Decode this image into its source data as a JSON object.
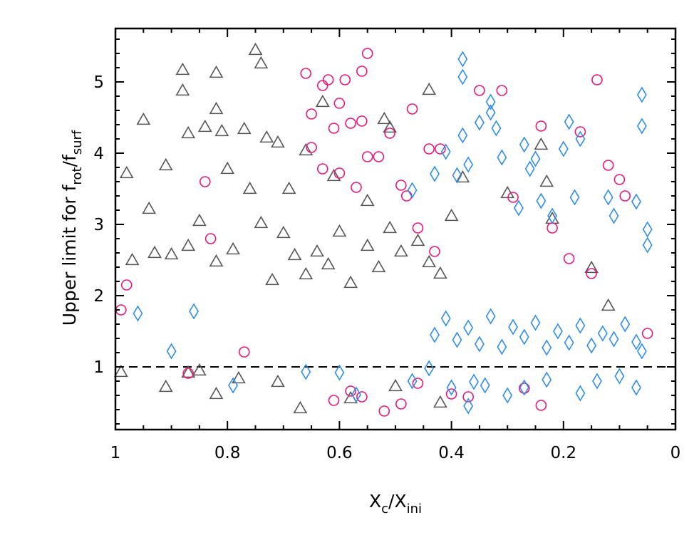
{
  "chart_data": {
    "type": "scatter",
    "title": "",
    "xlabel": {
      "base": "X",
      "sub": "c",
      "sep": "/",
      "base2": "X",
      "sub2": "ini"
    },
    "ylabel": {
      "prefix": "Upper limit for f",
      "sub": "rot",
      "sep": "/f",
      "sub2": "surf"
    },
    "xlim": [
      1,
      0
    ],
    "ylim": [
      0.12,
      5.75
    ],
    "xticks": [
      1,
      0.8,
      0.6,
      0.4,
      0.2,
      0
    ],
    "xtick_labels": [
      "1",
      "0.8",
      "0.6",
      "0.4",
      "0.2",
      "0"
    ],
    "yticks": [
      1,
      2,
      3,
      4,
      5
    ],
    "ytick_labels": [
      "1",
      "2",
      "3",
      "4",
      "5"
    ],
    "reference_line": {
      "y": 1,
      "style": "dashed"
    },
    "grid": false,
    "series": [
      {
        "marker": "triangle",
        "color": "#555555",
        "points": [
          [
            0.98,
            3.72
          ],
          [
            0.95,
            4.47
          ],
          [
            0.94,
            3.22
          ],
          [
            0.91,
            3.83
          ],
          [
            0.88,
            5.17
          ],
          [
            0.88,
            4.88
          ],
          [
            0.87,
            4.28
          ],
          [
            0.84,
            4.37
          ],
          [
            0.82,
            5.13
          ],
          [
            0.82,
            4.62
          ],
          [
            0.81,
            4.31
          ],
          [
            0.8,
            3.78
          ],
          [
            0.77,
            4.34
          ],
          [
            0.75,
            5.45
          ],
          [
            0.74,
            5.26
          ],
          [
            0.73,
            4.22
          ],
          [
            0.71,
            4.15
          ],
          [
            0.69,
            3.5
          ],
          [
            0.66,
            4.04
          ],
          [
            0.63,
            4.72
          ],
          [
            0.61,
            3.68
          ],
          [
            0.55,
            3.33
          ],
          [
            0.52,
            4.48
          ],
          [
            0.51,
            4.36
          ],
          [
            0.44,
            4.89
          ],
          [
            0.4,
            3.12
          ],
          [
            0.38,
            3.66
          ],
          [
            0.3,
            3.44
          ],
          [
            0.24,
            4.12
          ],
          [
            0.23,
            3.6
          ],
          [
            0.22,
            3.08
          ],
          [
            0.15,
            2.39
          ],
          [
            0.12,
            1.86
          ],
          [
            0.99,
            0.93
          ],
          [
            0.91,
            0.72
          ],
          [
            0.87,
            0.92
          ],
          [
            0.85,
            0.95
          ],
          [
            0.82,
            0.62
          ],
          [
            0.78,
            0.84
          ],
          [
            0.71,
            0.79
          ],
          [
            0.67,
            0.42
          ],
          [
            0.58,
            0.56
          ],
          [
            0.5,
            0.73
          ],
          [
            0.42,
            0.5
          ],
          [
            0.97,
            2.5
          ],
          [
            0.93,
            2.6
          ],
          [
            0.9,
            2.58
          ],
          [
            0.87,
            2.7
          ],
          [
            0.85,
            3.05
          ],
          [
            0.82,
            2.48
          ],
          [
            0.79,
            2.65
          ],
          [
            0.76,
            3.5
          ],
          [
            0.74,
            3.02
          ],
          [
            0.72,
            2.22
          ],
          [
            0.7,
            2.88
          ],
          [
            0.68,
            2.57
          ],
          [
            0.66,
            2.3
          ],
          [
            0.64,
            2.62
          ],
          [
            0.62,
            2.44
          ],
          [
            0.6,
            2.9
          ],
          [
            0.58,
            2.18
          ],
          [
            0.55,
            2.7
          ],
          [
            0.53,
            2.4
          ],
          [
            0.51,
            2.95
          ],
          [
            0.49,
            2.62
          ],
          [
            0.46,
            2.77
          ],
          [
            0.44,
            2.47
          ],
          [
            0.42,
            2.31
          ]
        ]
      },
      {
        "marker": "circle",
        "color": "#e8177a",
        "points": [
          [
            0.99,
            1.8
          ],
          [
            0.98,
            2.15
          ],
          [
            0.84,
            3.6
          ],
          [
            0.83,
            2.8
          ],
          [
            0.66,
            5.12
          ],
          [
            0.65,
            4.55
          ],
          [
            0.63,
            4.95
          ],
          [
            0.62,
            5.03
          ],
          [
            0.61,
            4.35
          ],
          [
            0.6,
            4.7
          ],
          [
            0.59,
            5.03
          ],
          [
            0.58,
            4.42
          ],
          [
            0.56,
            5.15
          ],
          [
            0.55,
            5.4
          ],
          [
            0.56,
            4.45
          ],
          [
            0.53,
            3.95
          ],
          [
            0.51,
            4.28
          ],
          [
            0.49,
            3.55
          ],
          [
            0.47,
            4.62
          ],
          [
            0.44,
            4.06
          ],
          [
            0.42,
            4.06
          ],
          [
            0.35,
            4.88
          ],
          [
            0.31,
            4.88
          ],
          [
            0.24,
            4.38
          ],
          [
            0.17,
            4.3
          ],
          [
            0.14,
            5.03
          ],
          [
            0.12,
            3.83
          ],
          [
            0.1,
            3.63
          ],
          [
            0.09,
            3.4
          ],
          [
            0.65,
            4.08
          ],
          [
            0.63,
            3.78
          ],
          [
            0.6,
            3.72
          ],
          [
            0.57,
            3.52
          ],
          [
            0.55,
            3.95
          ],
          [
            0.48,
            3.4
          ],
          [
            0.46,
            2.95
          ],
          [
            0.43,
            2.62
          ],
          [
            0.29,
            3.38
          ],
          [
            0.22,
            2.95
          ],
          [
            0.19,
            2.52
          ],
          [
            0.15,
            2.31
          ],
          [
            0.56,
            0.58
          ],
          [
            0.52,
            0.38
          ],
          [
            0.49,
            0.48
          ],
          [
            0.46,
            0.77
          ],
          [
            0.4,
            0.62
          ],
          [
            0.37,
            0.58
          ],
          [
            0.27,
            0.7
          ],
          [
            0.24,
            0.46
          ],
          [
            0.05,
            1.47
          ],
          [
            0.87,
            0.91
          ],
          [
            0.77,
            1.21
          ],
          [
            0.61,
            0.53
          ],
          [
            0.58,
            0.66
          ]
        ]
      },
      {
        "marker": "diamond",
        "color": "#2b8cee",
        "points": [
          [
            0.38,
            5.32
          ],
          [
            0.38,
            5.07
          ],
          [
            0.38,
            4.25
          ],
          [
            0.33,
            4.72
          ],
          [
            0.33,
            4.57
          ],
          [
            0.32,
            4.35
          ],
          [
            0.27,
            4.12
          ],
          [
            0.26,
            3.78
          ],
          [
            0.24,
            3.33
          ],
          [
            0.22,
            3.12
          ],
          [
            0.2,
            4.06
          ],
          [
            0.19,
            4.44
          ],
          [
            0.17,
            4.2
          ],
          [
            0.12,
            3.38
          ],
          [
            0.11,
            3.12
          ],
          [
            0.07,
            3.32
          ],
          [
            0.06,
            4.82
          ],
          [
            0.06,
            4.38
          ],
          [
            0.05,
            2.93
          ],
          [
            0.05,
            2.71
          ],
          [
            0.47,
            3.48
          ],
          [
            0.43,
            3.71
          ],
          [
            0.41,
            4.02
          ],
          [
            0.39,
            3.69
          ],
          [
            0.37,
            3.84
          ],
          [
            0.35,
            4.43
          ],
          [
            0.31,
            3.94
          ],
          [
            0.28,
            3.23
          ],
          [
            0.25,
            3.92
          ],
          [
            0.18,
            3.38
          ],
          [
            0.96,
            1.75
          ],
          [
            0.9,
            1.22
          ],
          [
            0.86,
            1.78
          ],
          [
            0.79,
            0.74
          ],
          [
            0.66,
            0.93
          ],
          [
            0.6,
            0.92
          ],
          [
            0.57,
            0.61
          ],
          [
            0.47,
            0.8
          ],
          [
            0.44,
            0.98
          ],
          [
            0.4,
            0.71
          ],
          [
            0.37,
            0.45
          ],
          [
            0.36,
            0.79
          ],
          [
            0.34,
            0.74
          ],
          [
            0.3,
            0.6
          ],
          [
            0.27,
            0.71
          ],
          [
            0.23,
            0.82
          ],
          [
            0.17,
            0.63
          ],
          [
            0.14,
            0.8
          ],
          [
            0.1,
            0.87
          ],
          [
            0.07,
            0.71
          ],
          [
            0.43,
            1.45
          ],
          [
            0.41,
            1.68
          ],
          [
            0.39,
            1.38
          ],
          [
            0.37,
            1.55
          ],
          [
            0.35,
            1.32
          ],
          [
            0.33,
            1.71
          ],
          [
            0.31,
            1.28
          ],
          [
            0.29,
            1.56
          ],
          [
            0.27,
            1.42
          ],
          [
            0.25,
            1.62
          ],
          [
            0.23,
            1.27
          ],
          [
            0.21,
            1.5
          ],
          [
            0.19,
            1.34
          ],
          [
            0.17,
            1.58
          ],
          [
            0.15,
            1.3
          ],
          [
            0.13,
            1.47
          ],
          [
            0.11,
            1.39
          ],
          [
            0.09,
            1.6
          ],
          [
            0.07,
            1.35
          ],
          [
            0.06,
            1.22
          ]
        ]
      }
    ]
  }
}
